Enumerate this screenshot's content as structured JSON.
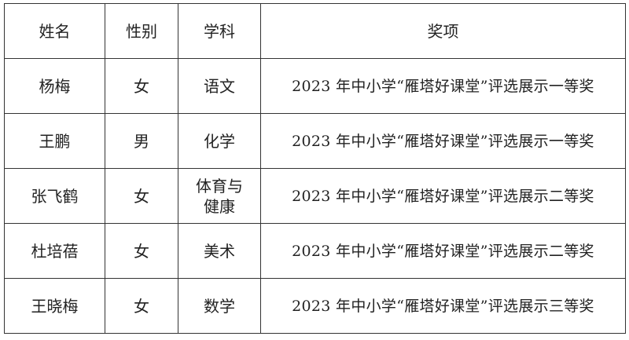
{
  "table": {
    "headers": [
      "姓名",
      "性别",
      "学科",
      "奖项"
    ],
    "rows": [
      {
        "name": "杨梅",
        "gender": "女",
        "subject": "语文",
        "award": "2023 年中小学“雁塔好课堂”评选展示一等奖"
      },
      {
        "name": "王鹏",
        "gender": "男",
        "subject": "化学",
        "award": "2023 年中小学“雁塔好课堂”评选展示一等奖"
      },
      {
        "name": "张飞鹤",
        "gender": "女",
        "subject": "体育与健康",
        "award": "2023 年中小学“雁塔好课堂”评选展示二等奖"
      },
      {
        "name": "杜培蓓",
        "gender": "女",
        "subject": "美术",
        "award": "2023 年中小学“雁塔好课堂”评选展示二等奖"
      },
      {
        "name": "王晓梅",
        "gender": "女",
        "subject": "数学",
        "award": "2023 年中小学“雁塔好课堂”评选展示三等奖"
      }
    ]
  }
}
